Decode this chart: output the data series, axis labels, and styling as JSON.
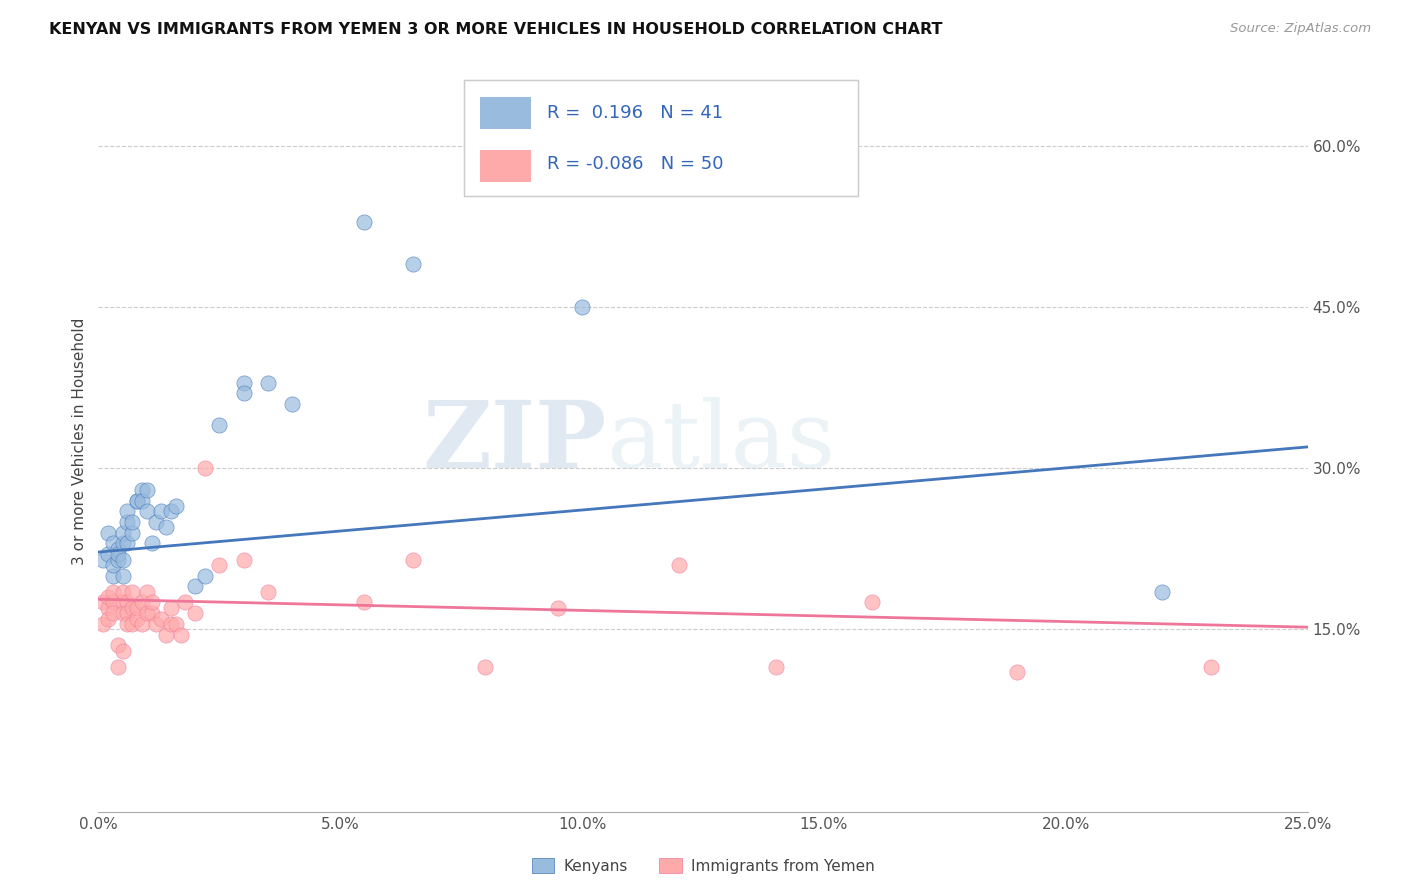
{
  "title": "KENYAN VS IMMIGRANTS FROM YEMEN 3 OR MORE VEHICLES IN HOUSEHOLD CORRELATION CHART",
  "source": "Source: ZipAtlas.com",
  "ylabel": "3 or more Vehicles in Household",
  "xlabel_ticks": [
    "0.0%",
    "5.0%",
    "10.0%",
    "15.0%",
    "20.0%",
    "25.0%"
  ],
  "xlabel_vals": [
    0.0,
    0.05,
    0.1,
    0.15,
    0.2,
    0.25
  ],
  "ylabel_ticks": [
    "15.0%",
    "30.0%",
    "45.0%",
    "60.0%"
  ],
  "ylabel_vals": [
    0.15,
    0.3,
    0.45,
    0.6
  ],
  "xlim": [
    0.0,
    0.25
  ],
  "ylim": [
    -0.02,
    0.67
  ],
  "legend_blue_label": "Kenyans",
  "legend_pink_label": "Immigrants from Yemen",
  "R_blue": 0.196,
  "N_blue": 41,
  "R_pink": -0.086,
  "N_pink": 50,
  "blue_color": "#99BBDD",
  "pink_color": "#FFAAAA",
  "blue_line_color": "#4477BB",
  "pink_line_color": "#EE7799",
  "watermark_zip": "ZIP",
  "watermark_atlas": "atlas",
  "blue_scatter_x": [
    0.001,
    0.002,
    0.002,
    0.003,
    0.003,
    0.003,
    0.004,
    0.004,
    0.004,
    0.005,
    0.005,
    0.005,
    0.005,
    0.006,
    0.006,
    0.006,
    0.007,
    0.007,
    0.008,
    0.008,
    0.009,
    0.009,
    0.01,
    0.01,
    0.011,
    0.012,
    0.013,
    0.014,
    0.015,
    0.016,
    0.02,
    0.022,
    0.025,
    0.03,
    0.03,
    0.035,
    0.04,
    0.055,
    0.065,
    0.1,
    0.22
  ],
  "blue_scatter_y": [
    0.215,
    0.22,
    0.24,
    0.2,
    0.23,
    0.21,
    0.215,
    0.225,
    0.22,
    0.23,
    0.24,
    0.215,
    0.2,
    0.25,
    0.23,
    0.26,
    0.24,
    0.25,
    0.27,
    0.27,
    0.28,
    0.27,
    0.26,
    0.28,
    0.23,
    0.25,
    0.26,
    0.245,
    0.26,
    0.265,
    0.19,
    0.2,
    0.34,
    0.38,
    0.37,
    0.38,
    0.36,
    0.53,
    0.49,
    0.45,
    0.185
  ],
  "pink_scatter_x": [
    0.001,
    0.001,
    0.002,
    0.002,
    0.002,
    0.003,
    0.003,
    0.003,
    0.004,
    0.004,
    0.005,
    0.005,
    0.005,
    0.005,
    0.006,
    0.006,
    0.006,
    0.007,
    0.007,
    0.007,
    0.008,
    0.008,
    0.009,
    0.009,
    0.01,
    0.01,
    0.011,
    0.011,
    0.012,
    0.013,
    0.014,
    0.015,
    0.015,
    0.016,
    0.017,
    0.018,
    0.02,
    0.022,
    0.025,
    0.03,
    0.035,
    0.055,
    0.065,
    0.08,
    0.095,
    0.12,
    0.14,
    0.16,
    0.19,
    0.23
  ],
  "pink_scatter_y": [
    0.175,
    0.155,
    0.17,
    0.18,
    0.16,
    0.175,
    0.185,
    0.165,
    0.115,
    0.135,
    0.175,
    0.185,
    0.165,
    0.13,
    0.175,
    0.165,
    0.155,
    0.17,
    0.155,
    0.185,
    0.16,
    0.17,
    0.155,
    0.175,
    0.165,
    0.185,
    0.165,
    0.175,
    0.155,
    0.16,
    0.145,
    0.155,
    0.17,
    0.155,
    0.145,
    0.175,
    0.165,
    0.3,
    0.21,
    0.215,
    0.185,
    0.175,
    0.215,
    0.115,
    0.17,
    0.21,
    0.115,
    0.175,
    0.11,
    0.115
  ]
}
